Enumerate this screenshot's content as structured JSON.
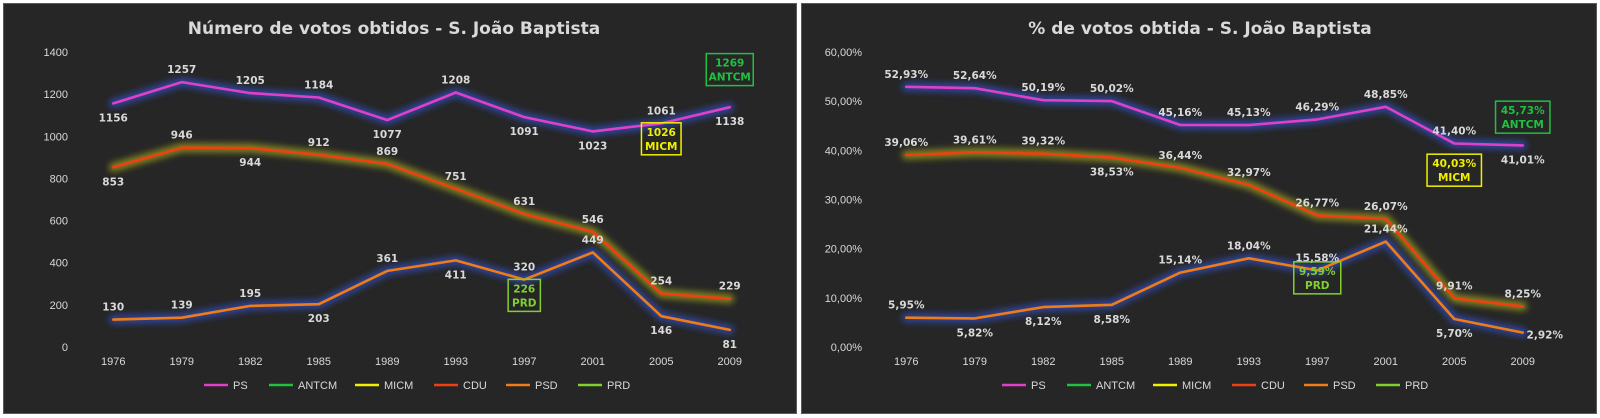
{
  "colors": {
    "PS": "#e040c8",
    "ANTCM": "#20c040",
    "MICM": "#f0f000",
    "CDU": "#f04010",
    "PSD": "#f07c18",
    "PRD": "#80d030"
  },
  "chart_data": [
    {
      "type": "line",
      "title": "Número de votos obtidos - S. João Baptista",
      "categories": [
        "1976",
        "1979",
        "1982",
        "1985",
        "1989",
        "1993",
        "1997",
        "2001",
        "2005",
        "2009"
      ],
      "ylim": [
        0,
        1400
      ],
      "yticks": [
        "0",
        "200",
        "400",
        "600",
        "800",
        "1000",
        "1200",
        "1400"
      ],
      "legend": [
        "PS",
        "ANTCM",
        "MICM",
        "CDU",
        "PSD",
        "PRD"
      ],
      "series": [
        {
          "name": "PS",
          "values": [
            1156,
            1257,
            1205,
            1184,
            1077,
            1208,
            1091,
            1023,
            1061,
            1138
          ],
          "labels": [
            "1156",
            "1257",
            "1205",
            "1184",
            "1077",
            "1208",
            "1091",
            "1023",
            "1061",
            "1138"
          ]
        },
        {
          "name": "CDU",
          "values": [
            853,
            946,
            944,
            912,
            869,
            751,
            631,
            546,
            254,
            229
          ],
          "labels": [
            "853",
            "946",
            "944",
            "912",
            "869",
            "751",
            "631",
            "546",
            "254",
            "229"
          ]
        },
        {
          "name": "PSD",
          "values": [
            130,
            139,
            195,
            203,
            361,
            411,
            320,
            449,
            146,
            81
          ],
          "labels": [
            "130",
            "139",
            "195",
            "203",
            "361",
            "411",
            "320",
            "449",
            "146",
            "81"
          ]
        }
      ],
      "points": [
        {
          "name": "ANTCM",
          "category": "2009",
          "value": 1269,
          "label": "1269",
          "series_label": "ANTCM"
        },
        {
          "name": "MICM",
          "category": "2005",
          "value": 1026,
          "label": "1026",
          "series_label": "MICM"
        },
        {
          "name": "PRD",
          "category": "1997",
          "value": 226,
          "label": "226",
          "series_label": "PRD"
        }
      ]
    },
    {
      "type": "line",
      "title": "% de votos obtida - S. João Baptista",
      "categories": [
        "1976",
        "1979",
        "1982",
        "1985",
        "1989",
        "1993",
        "1997",
        "2001",
        "2005",
        "2009"
      ],
      "ylim": [
        0,
        60
      ],
      "yticks": [
        "0,00%",
        "10,00%",
        "20,00%",
        "30,00%",
        "40,00%",
        "50,00%",
        "60,00%"
      ],
      "legend": [
        "PS",
        "ANTCM",
        "MICM",
        "CDU",
        "PSD",
        "PRD"
      ],
      "series": [
        {
          "name": "PS",
          "values": [
            52.93,
            52.64,
            50.19,
            50.02,
            45.16,
            45.13,
            46.29,
            48.85,
            41.4,
            41.01
          ],
          "labels": [
            "52,93%",
            "52,64%",
            "50,19%",
            "50,02%",
            "45,16%",
            "45,13%",
            "46,29%",
            "48,85%",
            "41,40%",
            "41,01%"
          ]
        },
        {
          "name": "CDU",
          "values": [
            39.06,
            39.61,
            39.32,
            38.53,
            36.44,
            32.97,
            26.77,
            26.07,
            9.91,
            8.25
          ],
          "labels": [
            "39,06%",
            "39,61%",
            "39,32%",
            "38,53%",
            "36,44%",
            "32,97%",
            "26,77%",
            "26,07%",
            "9,91%",
            "8,25%"
          ]
        },
        {
          "name": "PSD",
          "values": [
            5.95,
            5.82,
            8.12,
            8.58,
            15.14,
            18.04,
            15.58,
            21.44,
            5.7,
            2.92
          ],
          "labels": [
            "5,95%",
            "5,82%",
            "8,12%",
            "8,58%",
            "15,14%",
            "18,04%",
            "15,58%",
            "21,44%",
            "5,70%",
            "2,92%"
          ]
        }
      ],
      "points": [
        {
          "name": "ANTCM",
          "category": "2009",
          "value": 45.73,
          "label": "45,73%",
          "series_label": "ANTCM"
        },
        {
          "name": "MICM",
          "category": "2005",
          "value": 40.03,
          "label": "40,03%",
          "series_label": "MICM"
        },
        {
          "name": "PRD",
          "category": "1997",
          "value": 9.59,
          "label": "9,59%",
          "series_label": "PRD"
        }
      ]
    }
  ]
}
